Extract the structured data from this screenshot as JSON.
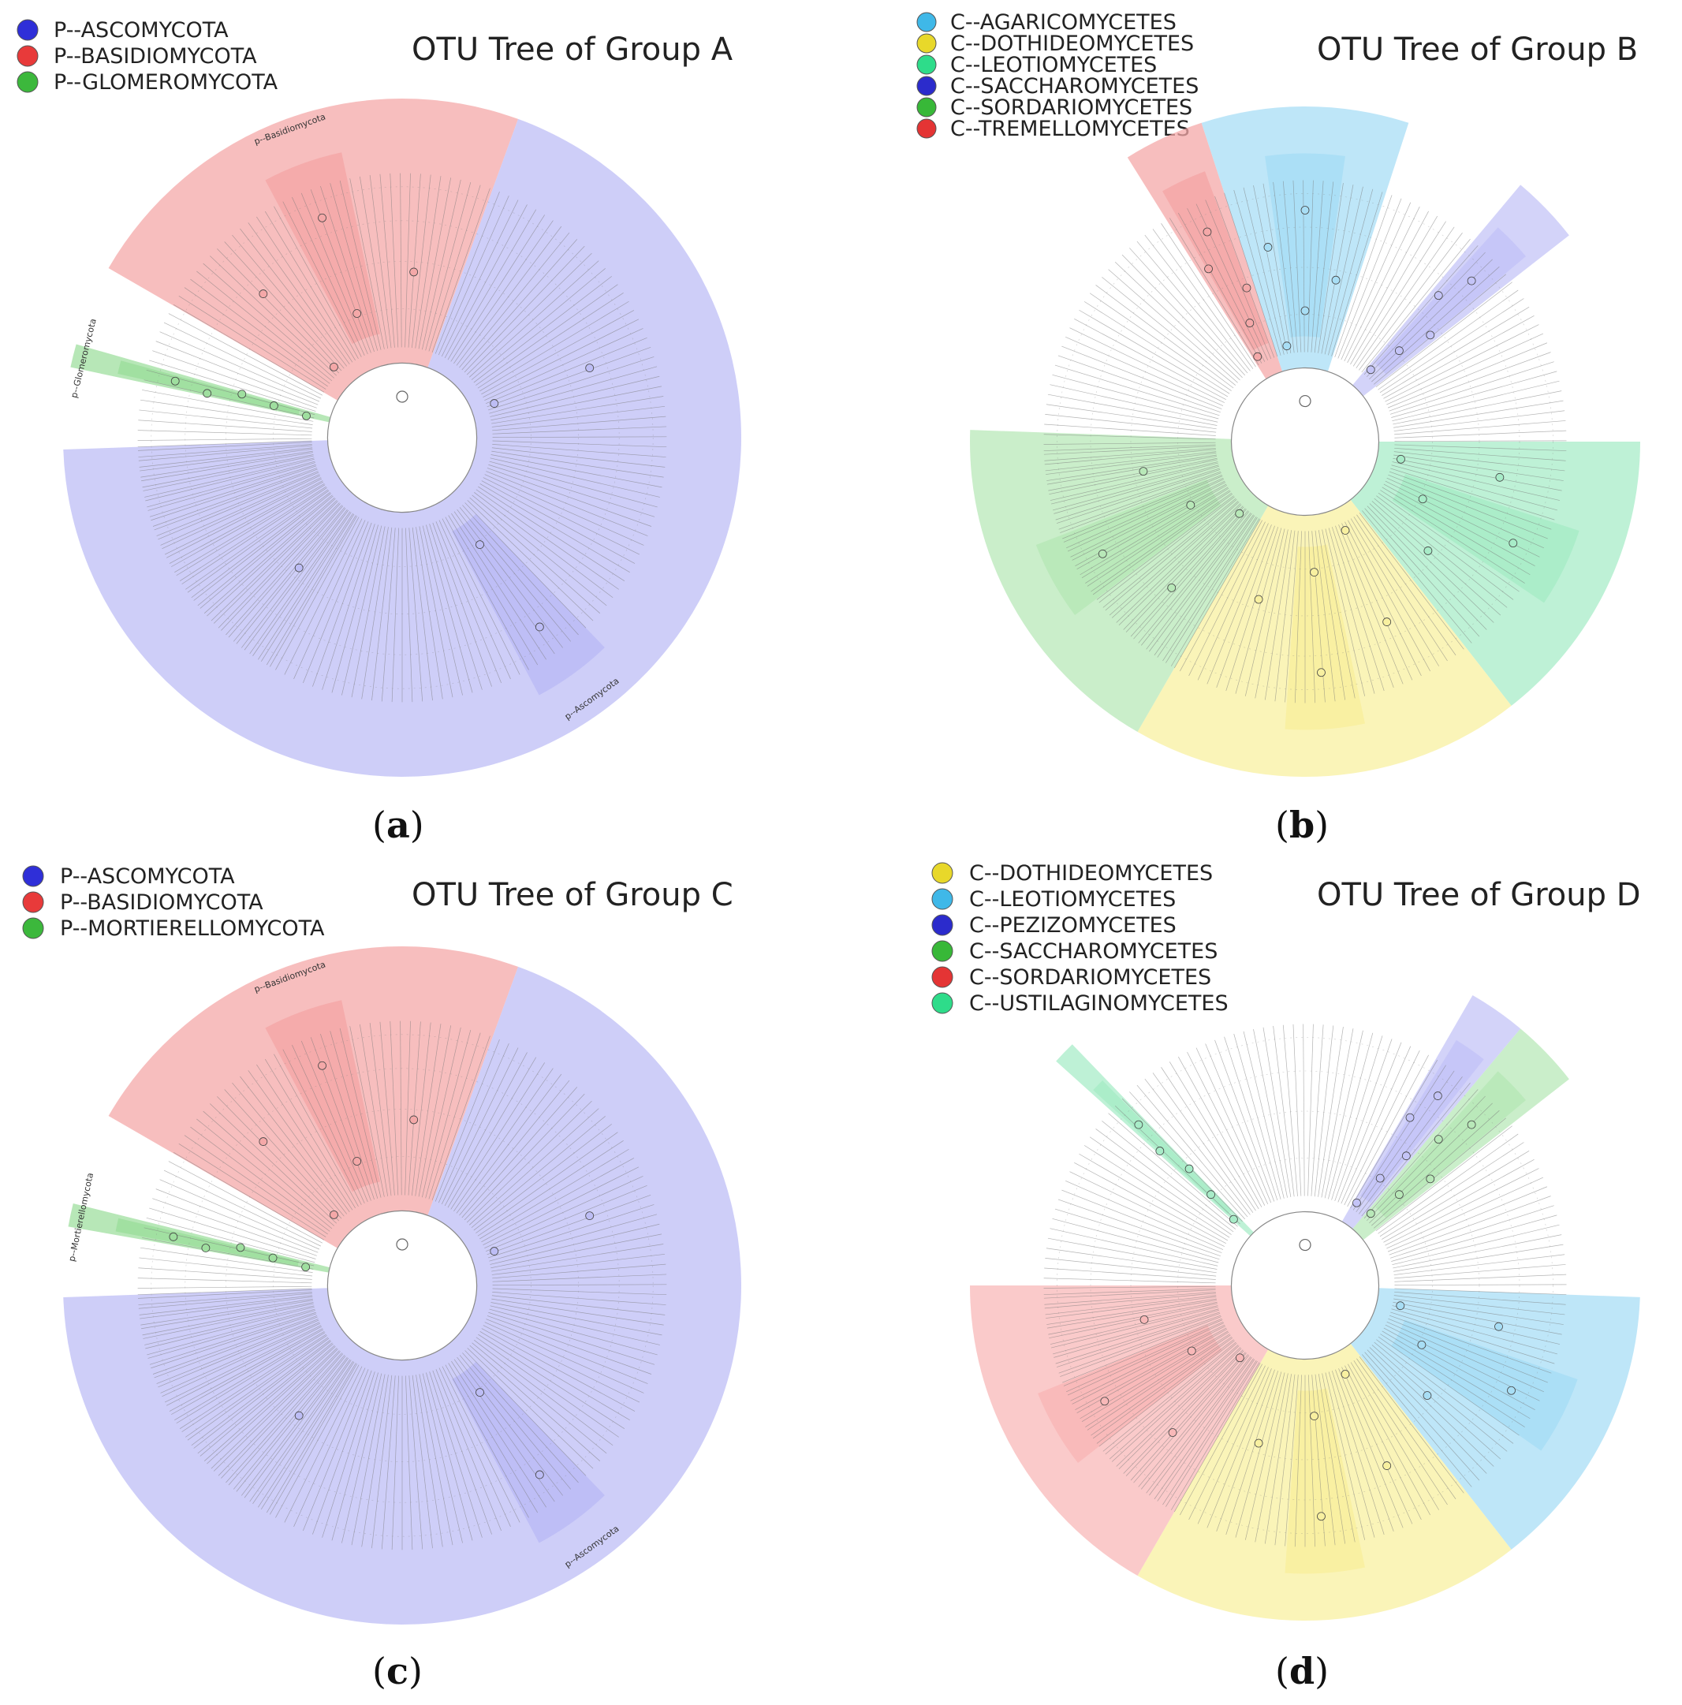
{
  "figure": {
    "panels": [
      {
        "id": "a",
        "title": "OTU Tree of Group A",
        "caption_open": "(",
        "caption_letter": "a",
        "caption_close": ")",
        "legend": [
          {
            "label": "P--ASCOMYCOTA",
            "color": "#2f2fd8"
          },
          {
            "label": "P--BASIDIOMYCOTA",
            "color": "#e83a3a"
          },
          {
            "label": "P--GLOMEROMYCOTA",
            "color": "#3cb83c"
          }
        ],
        "clades": [
          {
            "label": "p--Basidiomycota",
            "color": "#f4a8a8",
            "start": -60,
            "end": 20
          },
          {
            "label": "p--Glomeromycota",
            "color": "#9fdf9f",
            "start": -78,
            "end": -74
          },
          {
            "label": "p--Ascomycota",
            "color": "#bdbdf5",
            "start": 20,
            "end": 268
          }
        ]
      },
      {
        "id": "b",
        "title": "OTU Tree of Group B",
        "caption_open": "(",
        "caption_letter": "b",
        "caption_close": ")",
        "legend": [
          {
            "label": "C--AGARICOMYCETES",
            "color": "#3fb8e8"
          },
          {
            "label": "C--DOTHIDEOMYCETES",
            "color": "#e8d82a"
          },
          {
            "label": "C--LEOTIOMYCETES",
            "color": "#2edc8a"
          },
          {
            "label": "C--SACCHAROMYCETES",
            "color": "#2b2bcc"
          },
          {
            "label": "C--SORDARIOMYCETES",
            "color": "#38b838"
          },
          {
            "label": "C--TREMELLOMYCETES",
            "color": "#e43434"
          }
        ],
        "clades": [
          {
            "label": "",
            "color": "#f4a8a8",
            "start": -32,
            "end": -18
          },
          {
            "label": "",
            "color": "#a8def5",
            "start": -18,
            "end": 18
          },
          {
            "label": "",
            "color": "#c4c4f7",
            "start": 40,
            "end": 52
          },
          {
            "label": "",
            "color": "#a8ecc8",
            "start": 90,
            "end": 142
          },
          {
            "label": "",
            "color": "#f8f0a0",
            "start": 142,
            "end": 210
          },
          {
            "label": "",
            "color": "#b8e8b8",
            "start": 210,
            "end": 272
          }
        ]
      },
      {
        "id": "c",
        "title": "OTU Tree of Group C",
        "caption_open": "(",
        "caption_letter": "c",
        "caption_close": ")",
        "legend": [
          {
            "label": "P--ASCOMYCOTA",
            "color": "#2f2fd8"
          },
          {
            "label": "P--BASIDIOMYCOTA",
            "color": "#e83a3a"
          },
          {
            "label": "P--MORTIERELLOMYCOTA",
            "color": "#3cb83c"
          }
        ],
        "clades": [
          {
            "label": "p--Basidiomycota",
            "color": "#f4a8a8",
            "start": -60,
            "end": 20
          },
          {
            "label": "p--Mortierellomycota",
            "color": "#9fdf9f",
            "start": -80,
            "end": -76
          },
          {
            "label": "p--Ascomycota",
            "color": "#bdbdf5",
            "start": 20,
            "end": 268
          }
        ]
      },
      {
        "id": "d",
        "title": "OTU Tree of Group D",
        "caption_open": "(",
        "caption_letter": "d",
        "caption_close": ")",
        "legend": [
          {
            "label": "C--DOTHIDEOMYCETES",
            "color": "#e8d82a"
          },
          {
            "label": "C--LEOTIOMYCETES",
            "color": "#3fb8e8"
          },
          {
            "label": "C--PEZIZOMYCETES",
            "color": "#2b2bcc"
          },
          {
            "label": "C--SACCHAROMYCETES",
            "color": "#38b838"
          },
          {
            "label": "C--SORDARIOMYCETES",
            "color": "#e43434"
          },
          {
            "label": "C--USTILAGINOMYCETES",
            "color": "#2edc8a"
          }
        ],
        "clades": [
          {
            "label": "",
            "color": "#a8ecc8",
            "start": -48,
            "end": -44
          },
          {
            "label": "",
            "color": "#c4c4f7",
            "start": 30,
            "end": 40
          },
          {
            "label": "",
            "color": "#b8e8b8",
            "start": 40,
            "end": 52
          },
          {
            "label": "",
            "color": "#a8def5",
            "start": 92,
            "end": 142
          },
          {
            "label": "",
            "color": "#f8f0a0",
            "start": 142,
            "end": 210
          },
          {
            "label": "",
            "color": "#f8b8b8",
            "start": 210,
            "end": 270
          }
        ]
      }
    ]
  }
}
